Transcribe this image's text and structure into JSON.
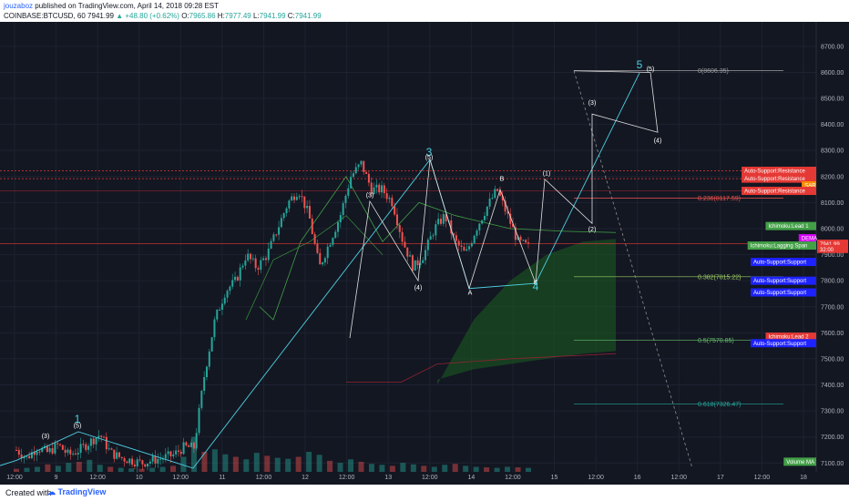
{
  "header": {
    "author": "jouzaboz",
    "published_text": "published on TradingView.com, April 14, 2018 09:28 EST",
    "symbol": "COINBASE:BTCUSD, 60",
    "last": "7941.99",
    "change": "▲ +48.80 (+0.62%)",
    "o_label": "O:",
    "o": "7965.86",
    "h_label": "H:",
    "h": "7977.49",
    "l_label": "L:",
    "l": "7941.99",
    "c_label": "C:",
    "c": "7941.99"
  },
  "footer": {
    "created_with": "Created with",
    "brand": "TradingView"
  },
  "colors": {
    "bg": "#131722",
    "grid": "#1e2230",
    "up": "#26a69a",
    "down": "#ef5350",
    "wave": "#4dd0e1",
    "cloud": "#1b5e20"
  },
  "chart_data": {
    "type": "candlestick",
    "y_axis": {
      "ylim": [
        7080,
        8780
      ],
      "ticks": [
        7100,
        7200,
        7300,
        7400,
        7500,
        7600,
        7700,
        7800,
        7900,
        8000,
        8100,
        8200,
        8300,
        8400,
        8500,
        8600,
        8700
      ]
    },
    "x_ticks": [
      "12:00",
      "9",
      "12:00",
      "10",
      "12:00",
      "11",
      "12:00",
      "12",
      "12:00",
      "13",
      "12:00",
      "14",
      "12:00",
      "15",
      "12:00",
      "16",
      "12:00",
      "17",
      "12:00",
      "18"
    ],
    "price_path": [
      7150,
      7120,
      7160,
      7140,
      7170,
      7130,
      7150,
      7180,
      7210,
      7140,
      7120,
      7110,
      7100,
      7110,
      7120,
      7130,
      7160,
      7160,
      7440,
      7650,
      7760,
      7800,
      7900,
      7850,
      7900,
      8000,
      8100,
      8150,
      8050,
      7850,
      7950,
      8050,
      8200,
      8250,
      8150,
      8150,
      8100,
      7950,
      7850,
      7900,
      8000,
      8050,
      7950,
      7900,
      8000,
      8080,
      8150,
      8050,
      7950,
      7930
    ],
    "volume_path": [
      6,
      8,
      10,
      15,
      12,
      18,
      20,
      24,
      14,
      10,
      8,
      7,
      6,
      8,
      10,
      12,
      30,
      70,
      40,
      45,
      35,
      30,
      25,
      38,
      32,
      28,
      26,
      30,
      40,
      34,
      22,
      18,
      25,
      20,
      16,
      14,
      12,
      18,
      15,
      12,
      10,
      14,
      16,
      12,
      10,
      9,
      8,
      10,
      9,
      8
    ],
    "wave_labels": [
      {
        "text": "(3)",
        "x": 100,
        "y": 7195
      },
      {
        "text": "1",
        "x": 170,
        "y": 7255
      },
      {
        "text": "(5)",
        "x": 170,
        "y": 7235
      },
      {
        "text": "(3)",
        "x": 812,
        "y": 8120
      },
      {
        "text": "3",
        "x": 942,
        "y": 8280
      },
      {
        "text": "(5)",
        "x": 942,
        "y": 8265
      },
      {
        "text": "(4)",
        "x": 918,
        "y": 7765
      },
      {
        "text": "A",
        "x": 1032,
        "y": 7747
      },
      {
        "text": "B",
        "x": 1102,
        "y": 8184
      },
      {
        "text": "C",
        "x": 1176,
        "y": 7784
      },
      {
        "text": "4",
        "x": 1176,
        "y": 7764
      },
      {
        "text": "(1)",
        "x": 1200,
        "y": 8205
      },
      {
        "text": "(2)",
        "x": 1300,
        "y": 7990
      },
      {
        "text": "(3)",
        "x": 1300,
        "y": 8475
      },
      {
        "text": "5",
        "x": 1404,
        "y": 8615
      },
      {
        "text": "(5)",
        "x": 1428,
        "y": 8605
      },
      {
        "text": "(4)",
        "x": 1444,
        "y": 8330
      }
    ],
    "fib_levels": [
      {
        "label": "0(8606.35)",
        "value": 8606.35,
        "color": "#9e9e9e"
      },
      {
        "label": "0.236(8117.59)",
        "value": 8117.59,
        "color": "#ef5350"
      },
      {
        "label": "0.382(7815.22)",
        "value": 7815.22,
        "color": "#9ccc65"
      },
      {
        "label": "0.5(7570.85)",
        "value": 7570.85,
        "color": "#66bb6a"
      },
      {
        "label": "0.618(7326.47)",
        "value": 7326.47,
        "color": "#26a69a"
      }
    ],
    "indicator_labels": [
      {
        "text": "Auto-Support:Resistance",
        "value": 8222,
        "bg": "#e53935"
      },
      {
        "text": "Auto-Support:Resistance",
        "value": 8192,
        "bg": "#e53935"
      },
      {
        "text": "SAR",
        "value": 8166,
        "bg": "#fb8c00"
      },
      {
        "text": "Auto-Support:Resistance",
        "value": 8145,
        "bg": "#e53935"
      },
      {
        "text": "Ichimoku:Lead 1",
        "value": 8010,
        "bg": "#43a047"
      },
      {
        "text": "DEMA",
        "value": 7963,
        "bg": "#d500f9"
      },
      {
        "text": "Ichimoku:Lagging Span",
        "value": 7935,
        "bg": "#43a047"
      },
      {
        "text": "Auto-Support:Support",
        "value": 7872,
        "bg": "#1e22ff"
      },
      {
        "text": "Auto-Support:Support",
        "value": 7800,
        "bg": "#1e22ff"
      },
      {
        "text": "Auto-Support:Support",
        "value": 7755,
        "bg": "#1e22ff"
      },
      {
        "text": "Ichimoku:Lead 2",
        "value": 7585,
        "bg": "#e53935"
      },
      {
        "text": "Auto-Support:Support",
        "value": 7560,
        "bg": "#1e22ff"
      },
      {
        "text": "Volume MA",
        "value": 7105,
        "bg": "#43a047"
      }
    ],
    "price_tags": [
      {
        "text": "7941.99",
        "value": 7942,
        "bg": "#e53935"
      },
      {
        "text": "32:00",
        "value": 7922,
        "bg": "#e53935"
      }
    ]
  }
}
